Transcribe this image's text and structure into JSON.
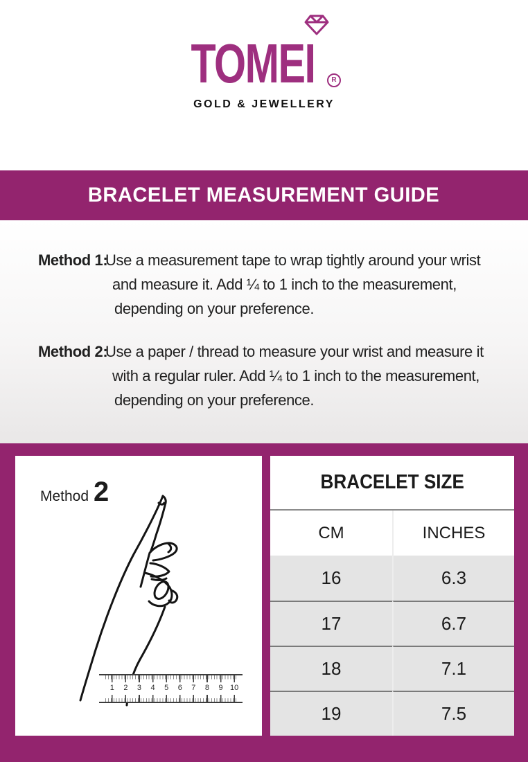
{
  "logo": {
    "brand": "TOMEI",
    "registered": "R",
    "tagline": "GOLD & JEWELLERY",
    "brand_color": "#9E2F7F",
    "tagline_color": "#111111"
  },
  "banner": {
    "title": "BRACELET MEASUREMENT GUIDE",
    "bg_color": "#93246E",
    "text_color": "#FFFFFF"
  },
  "methods": [
    {
      "label": "Method 1:",
      "lines": [
        "Use a measurement tape to wrap tightly around your wrist",
        "and measure it. Add ¼ to 1 inch to the measurement,",
        "depending on your preference."
      ]
    },
    {
      "label": "Method 2:",
      "lines": [
        "Use a paper / thread to measure your wrist and measure it",
        "with a regular ruler. Add ¼ to 1 inch to the measurement,",
        "depending on your preference."
      ]
    }
  ],
  "diagram": {
    "label_word": "Method",
    "label_number": "2",
    "hand_icon": "hand-pointing-up-line-art",
    "ruler": {
      "numbers": [
        "1",
        "2",
        "3",
        "4",
        "5",
        "6",
        "7",
        "8",
        "9",
        "10"
      ]
    }
  },
  "size_table": {
    "title": "BRACELET SIZE",
    "columns": [
      "CM",
      "INCHES"
    ],
    "rows": [
      [
        "16",
        "6.3"
      ],
      [
        "17",
        "6.7"
      ],
      [
        "18",
        "7.1"
      ],
      [
        "19",
        "7.5"
      ]
    ],
    "row_bg_color": "#E4E4E4"
  }
}
